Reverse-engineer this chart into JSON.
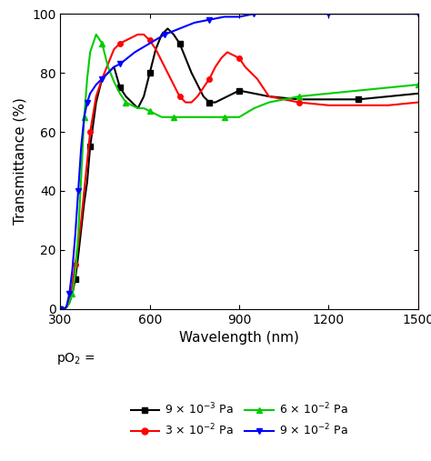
{
  "xlim": [
    300,
    1500
  ],
  "ylim": [
    0,
    100
  ],
  "xlabel": "Wavelength (nm)",
  "ylabel": "Transmittance (%)",
  "xticks": [
    300,
    600,
    900,
    1200,
    1500
  ],
  "yticks": [
    0,
    20,
    40,
    60,
    80,
    100
  ],
  "bg_color": "#ffffff",
  "series": [
    {
      "label": "9 × 10$^{-3}$ Pa",
      "color": "black",
      "marker": "s",
      "x": [
        300,
        310,
        320,
        330,
        340,
        350,
        360,
        370,
        380,
        390,
        400,
        420,
        440,
        460,
        480,
        500,
        520,
        540,
        560,
        580,
        600,
        620,
        640,
        660,
        680,
        700,
        720,
        740,
        760,
        780,
        800,
        820,
        840,
        860,
        880,
        900,
        950,
        1000,
        1100,
        1200,
        1300,
        1400,
        1500
      ],
      "y": [
        0,
        0,
        0.5,
        2,
        5,
        10,
        18,
        27,
        36,
        43,
        55,
        70,
        78,
        80,
        82,
        75,
        72,
        70,
        68,
        72,
        80,
        88,
        93,
        95,
        93,
        90,
        85,
        80,
        76,
        72,
        70,
        70,
        71,
        72,
        73,
        74,
        73,
        72,
        71,
        71,
        71,
        72,
        73
      ]
    },
    {
      "label": "3 × 10$^{-2}$ Pa",
      "color": "red",
      "marker": "o",
      "x": [
        300,
        310,
        320,
        330,
        340,
        350,
        360,
        370,
        380,
        390,
        400,
        420,
        440,
        460,
        480,
        500,
        520,
        540,
        560,
        580,
        600,
        620,
        640,
        660,
        680,
        700,
        720,
        740,
        760,
        780,
        800,
        820,
        840,
        860,
        880,
        900,
        920,
        940,
        960,
        1000,
        1100,
        1200,
        1300,
        1400,
        1500
      ],
      "y": [
        0,
        0,
        0.5,
        3,
        8,
        15,
        22,
        30,
        40,
        50,
        60,
        72,
        78,
        83,
        88,
        90,
        91,
        92,
        93,
        93,
        91,
        88,
        84,
        80,
        76,
        72,
        70,
        70,
        72,
        75,
        78,
        82,
        85,
        87,
        86,
        85,
        82,
        80,
        78,
        72,
        70,
        69,
        69,
        69,
        70
      ]
    },
    {
      "label": "6 × 10$^{-2}$ Pa",
      "color": "#00cc00",
      "marker": "^",
      "x": [
        300,
        310,
        320,
        330,
        340,
        350,
        360,
        370,
        380,
        390,
        400,
        420,
        440,
        460,
        480,
        500,
        520,
        540,
        560,
        580,
        600,
        620,
        640,
        660,
        680,
        700,
        750,
        800,
        850,
        900,
        950,
        1000,
        1100,
        1200,
        1300,
        1400,
        1500
      ],
      "y": [
        0,
        0,
        0.5,
        2,
        5,
        12,
        25,
        45,
        65,
        78,
        87,
        93,
        90,
        82,
        77,
        73,
        70,
        69,
        68,
        68,
        67,
        66,
        65,
        65,
        65,
        65,
        65,
        65,
        65,
        65,
        68,
        70,
        72,
        73,
        74,
        75,
        76
      ]
    },
    {
      "label": "9 × 10$^{-2}$ Pa",
      "color": "blue",
      "marker": "v",
      "x": [
        300,
        310,
        320,
        330,
        340,
        350,
        360,
        370,
        380,
        390,
        400,
        420,
        440,
        460,
        480,
        500,
        550,
        600,
        650,
        700,
        750,
        800,
        850,
        900,
        950,
        1000,
        1100,
        1200,
        1300,
        1400,
        1500
      ],
      "y": [
        0,
        0,
        0.5,
        5,
        13,
        25,
        40,
        55,
        65,
        70,
        73,
        76,
        78,
        80,
        82,
        83,
        87,
        90,
        93,
        95,
        97,
        98,
        99,
        99,
        100,
        100,
        100,
        100,
        100,
        100,
        100
      ]
    }
  ]
}
